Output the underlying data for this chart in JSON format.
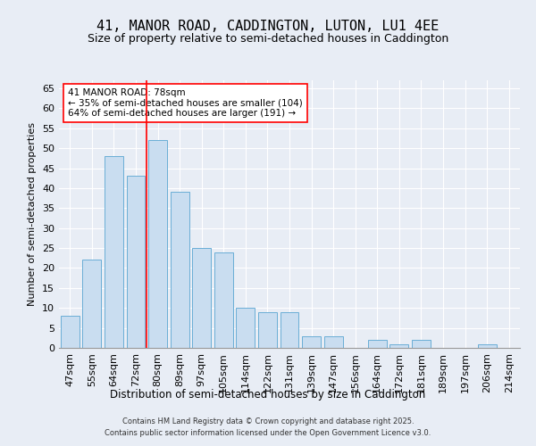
{
  "title": "41, MANOR ROAD, CADDINGTON, LUTON, LU1 4EE",
  "subtitle": "Size of property relative to semi-detached houses in Caddington",
  "xlabel": "Distribution of semi-detached houses by size in Caddington",
  "ylabel": "Number of semi-detached properties",
  "categories": [
    "47sqm",
    "55sqm",
    "64sqm",
    "72sqm",
    "80sqm",
    "89sqm",
    "97sqm",
    "105sqm",
    "114sqm",
    "122sqm",
    "131sqm",
    "139sqm",
    "147sqm",
    "156sqm",
    "164sqm",
    "172sqm",
    "181sqm",
    "189sqm",
    "197sqm",
    "206sqm",
    "214sqm"
  ],
  "values": [
    8,
    22,
    48,
    43,
    52,
    39,
    25,
    24,
    10,
    9,
    9,
    3,
    3,
    0,
    2,
    1,
    2,
    0,
    0,
    1,
    0
  ],
  "bar_color": "#c9ddf0",
  "bar_edge_color": "#6aaed6",
  "marker_line_index": 4,
  "annotation_line1": "41 MANOR ROAD: 78sqm",
  "annotation_line2": "← 35% of semi-detached houses are smaller (104)",
  "annotation_line3": "64% of semi-detached houses are larger (191) →",
  "ylim": [
    0,
    67
  ],
  "yticks": [
    0,
    5,
    10,
    15,
    20,
    25,
    30,
    35,
    40,
    45,
    50,
    55,
    60,
    65
  ],
  "footer1": "Contains HM Land Registry data © Crown copyright and database right 2025.",
  "footer2": "Contains public sector information licensed under the Open Government Licence v3.0.",
  "bg_color": "#e8edf5",
  "plot_bg_color": "#e8edf5",
  "title_fontsize": 11,
  "subtitle_fontsize": 9,
  "axis_label_fontsize": 8,
  "tick_fontsize": 8,
  "annotation_fontsize": 7.5,
  "footer_fontsize": 6
}
